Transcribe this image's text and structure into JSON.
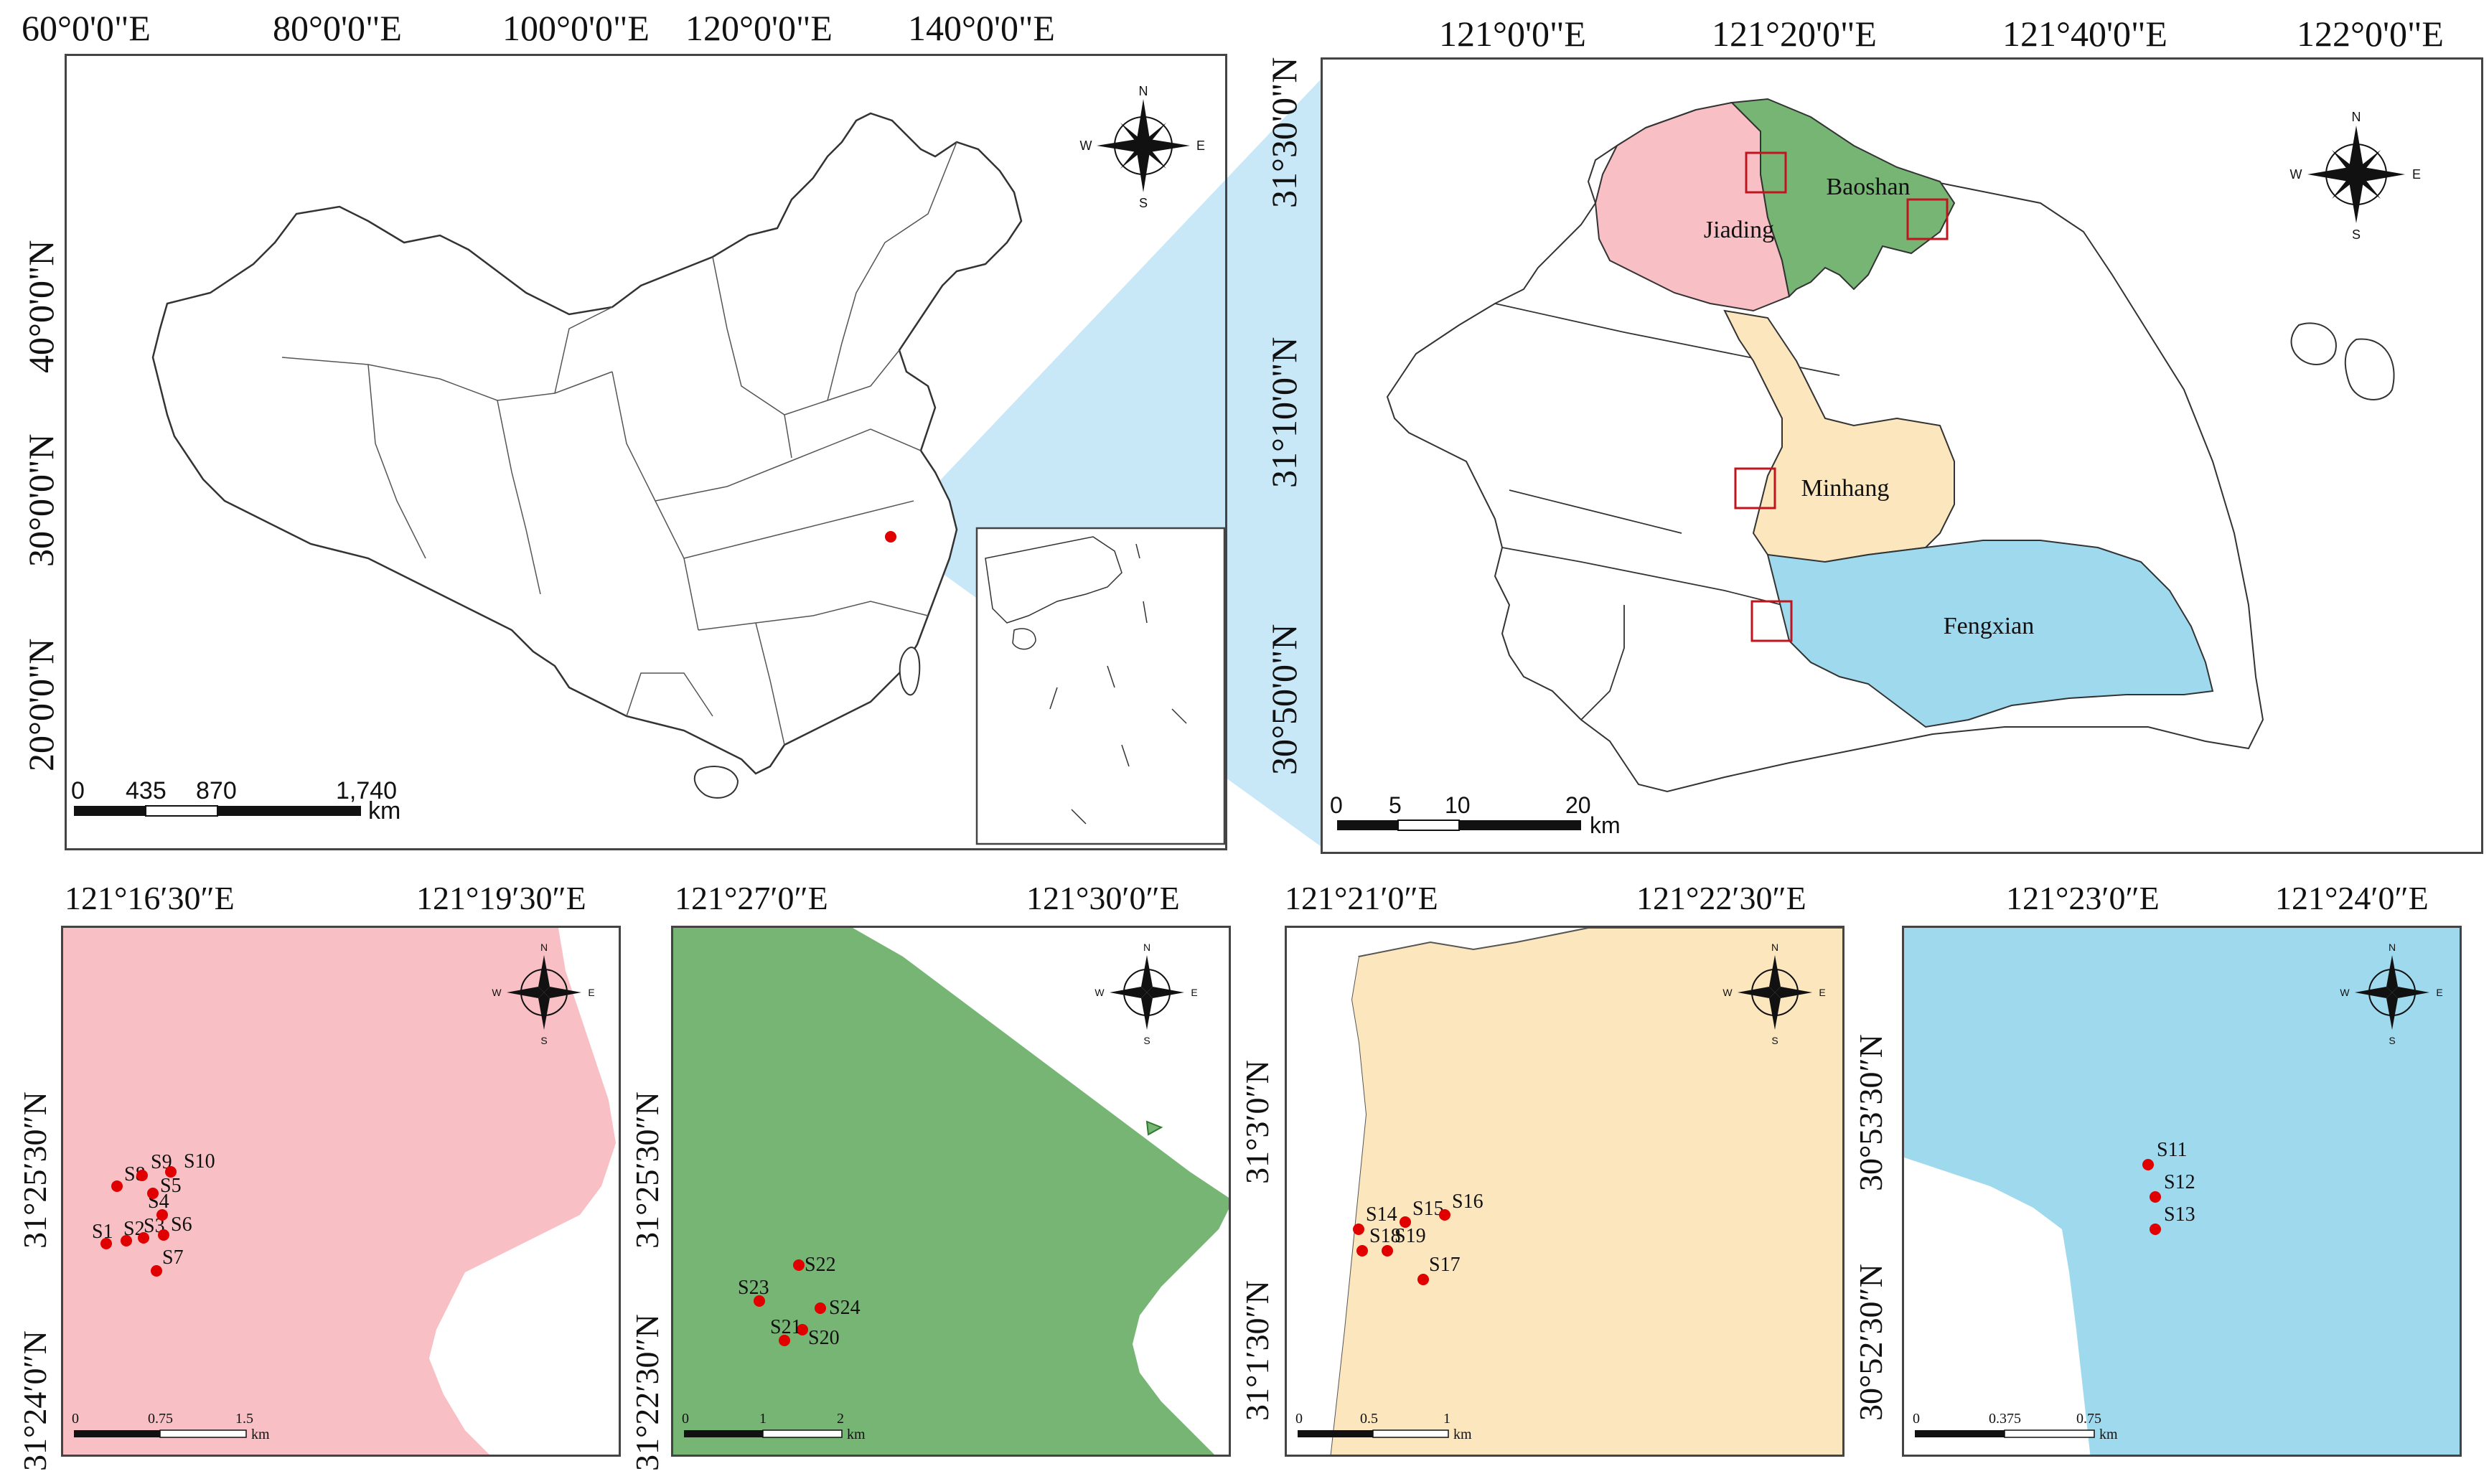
{
  "china_map": {
    "x_labels": [
      "60°0'0\"E",
      "80°0'0\"E",
      "100°0'0\"E",
      "120°0'0\"E",
      "140°0'0\"E"
    ],
    "y_labels": [
      "40°0'0\"N",
      "30°0'0\"N",
      "20°0'0\"N"
    ],
    "scale_labels": [
      "0",
      "435",
      "870",
      "1,740"
    ],
    "scale_unit": "km"
  },
  "shanghai_map": {
    "x_labels": [
      "121°0'0\"E",
      "121°20'0\"E",
      "121°40'0\"E",
      "122°0'0\"E"
    ],
    "y_labels": [
      "31°30'0\"N",
      "31°10'0\"N",
      "30°50'0\"N"
    ],
    "districts": [
      {
        "name": "Jiading",
        "color": "#f8c0c4"
      },
      {
        "name": "Baoshan",
        "color": "#76b574"
      },
      {
        "name": "Minhang",
        "color": "#fbe6bd"
      },
      {
        "name": "Fengxian",
        "color": "#9fd9ee"
      }
    ],
    "scale_labels": [
      "0",
      "5",
      "10",
      "20"
    ],
    "scale_unit": "km"
  },
  "compass": {
    "n": "N",
    "s": "S",
    "e": "E",
    "w": "W"
  },
  "highlight_color": "#c8e8f8",
  "site_color": "#e00000",
  "detail_maps": [
    {
      "district": "Jiading",
      "color": "#f8c0c4",
      "x_labels": [
        "121°16′30″E",
        "121°19′30″E"
      ],
      "y_labels": [
        "31°25′30″N",
        "31°24′0″N"
      ],
      "scale_labels": [
        "0",
        "0.75",
        "1.5"
      ],
      "scale_unit": "km",
      "sites": [
        "S1",
        "S2",
        "S3",
        "S4",
        "S5",
        "S6",
        "S7",
        "S8",
        "S9",
        "S10"
      ]
    },
    {
      "district": "Baoshan",
      "color": "#76b574",
      "x_labels": [
        "121°27′0″E",
        "121°30′0″E"
      ],
      "y_labels": [
        "31°25′30″N",
        "31°22′30″N"
      ],
      "scale_labels": [
        "0",
        "1",
        "2"
      ],
      "scale_unit": "km",
      "sites": [
        "S20",
        "S21",
        "S22",
        "S23",
        "S24"
      ]
    },
    {
      "district": "Minhang",
      "color": "#fbe6bd",
      "x_labels": [
        "121°21′0″E",
        "121°22′30″E"
      ],
      "y_labels": [
        "31°3′0″N",
        "31°1′30″N"
      ],
      "scale_labels": [
        "0",
        "0.5",
        "1"
      ],
      "scale_unit": "km",
      "sites": [
        "S14",
        "S15",
        "S16",
        "S17",
        "S18",
        "S19"
      ]
    },
    {
      "district": "Fengxian",
      "color": "#9fd9ee",
      "x_labels": [
        "121°23′0″E",
        "121°24′0″E"
      ],
      "y_labels": [
        "30°53′30″N",
        "30°52′30″N"
      ],
      "scale_labels": [
        "0",
        "0.375",
        "0.75"
      ],
      "scale_unit": "km",
      "sites": [
        "S11",
        "S12",
        "S13"
      ]
    }
  ]
}
